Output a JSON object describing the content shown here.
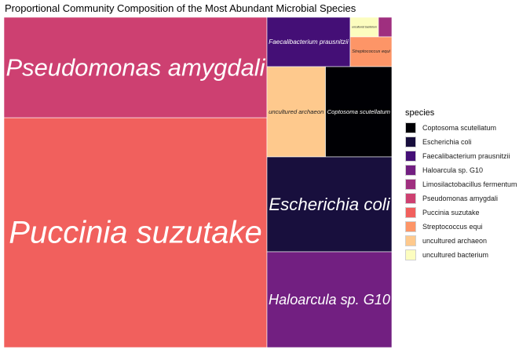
{
  "chart_data": {
    "type": "treemap",
    "title": "Proportional Community Composition of the Most Abundant Microbial Species",
    "legend_title": "species",
    "legend_position": "right",
    "items": [
      {
        "name": "Puccinia suzutake",
        "value": 25.6,
        "color": "#F1605D"
      },
      {
        "name": "Pseudomonas amygdali",
        "value": 11.2,
        "color": "#CD4071"
      },
      {
        "name": "Haloarcula sp. G10",
        "value": 5.3,
        "color": "#721F81"
      },
      {
        "name": "Escherichia coli",
        "value": 5.2,
        "color": "#180F3D"
      },
      {
        "name": "Coptosoma scutellatum",
        "value": 3.4,
        "color": "#000004"
      },
      {
        "name": "uncultured archaeon",
        "value": 3.0,
        "color": "#FEC98D"
      },
      {
        "name": "Faecalibacterium prausnitzii",
        "value": 2.4,
        "color": "#440F76"
      },
      {
        "name": "Streptococcus equi",
        "value": 0.8,
        "color": "#FD9567"
      },
      {
        "name": "uncultured bacterium",
        "value": 0.5,
        "color": "#FCFDBF"
      },
      {
        "name": "Limosilactobacillus fermentum",
        "value": 0.25,
        "color": "#9F2F7F"
      }
    ],
    "legend_order": [
      "Coptosoma scutellatum",
      "Escherichia coli",
      "Faecalibacterium prausnitzii",
      "Haloarcula sp. G10",
      "Limosilactobacillus fermentum",
      "Pseudomonas amygdali",
      "Puccinia suzutake",
      "Streptococcus equi",
      "uncultured archaeon",
      "uncultured bacterium"
    ]
  }
}
